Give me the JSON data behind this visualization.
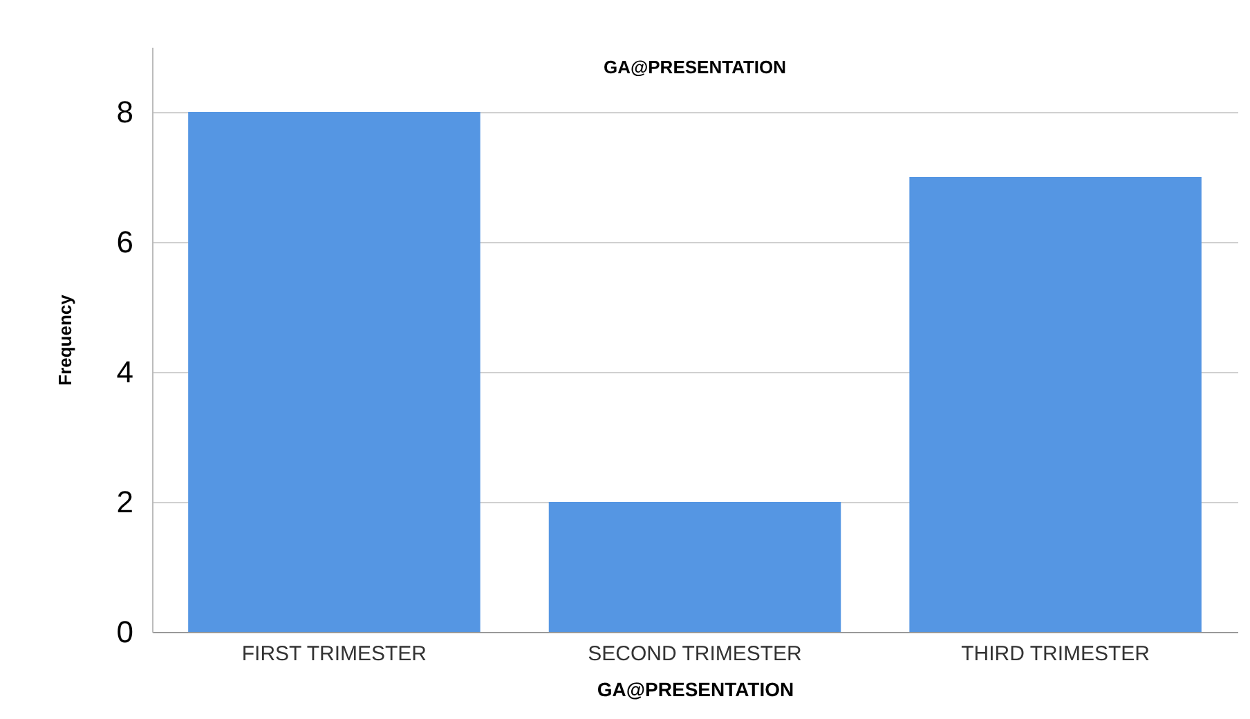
{
  "chart_data": {
    "type": "bar",
    "title": "GA@PRESENTATION",
    "xlabel": "GA@PRESENTATION",
    "ylabel": "Frequency",
    "categories": [
      "FIRST TRIMESTER",
      "SECOND TRIMESTER",
      "THIRD TRIMESTER"
    ],
    "values": [
      8,
      2,
      7
    ],
    "color": "#5596e3",
    "ylim": [
      0,
      9
    ],
    "yticks": [
      0,
      2,
      4,
      6,
      8
    ],
    "grid": "y"
  }
}
